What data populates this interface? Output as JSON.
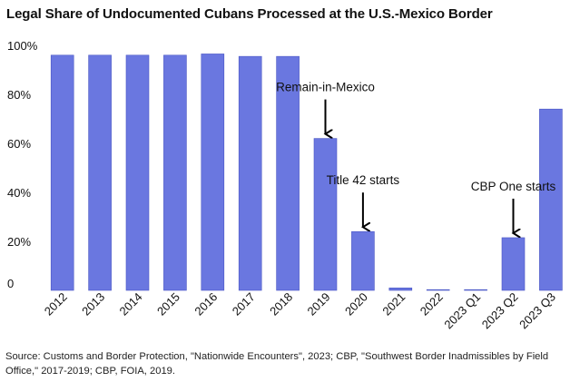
{
  "chart_data": {
    "type": "bar",
    "title": "Legal Share of Undocumented Cubans Processed at the U.S.-Mexico Border",
    "xlabel": "",
    "ylabel": "",
    "ylim": [
      0,
      100
    ],
    "yticks": [
      0,
      20,
      40,
      60,
      80,
      100
    ],
    "ytick_labels": [
      "0",
      "20%",
      "40%",
      "60%",
      "80%",
      "100%"
    ],
    "grid": false,
    "bar_color": "#6A77E0",
    "categories": [
      "2012",
      "2013",
      "2014",
      "2015",
      "2016",
      "2017",
      "2018",
      "2019",
      "2020",
      "2021",
      "2022",
      "2023 Q1",
      "2023 Q2",
      "2023 Q3"
    ],
    "values": [
      96,
      96,
      96,
      96,
      96.5,
      95.5,
      95.5,
      62,
      24,
      1,
      0.3,
      0.3,
      21.5,
      74
    ],
    "annotations": [
      {
        "text": "Remain-in-Mexico",
        "category_index": 7
      },
      {
        "text": "Title 42 starts",
        "category_index": 8
      },
      {
        "text": "CBP One starts",
        "category_index": 12
      }
    ]
  },
  "source": "Source: Customs and Border Protection, \"Nationwide Encounters\", 2023; CBP, \"Southwest Border Inadmissibles by Field Office,\" 2017-2019; CBP, FOIA, 2019."
}
